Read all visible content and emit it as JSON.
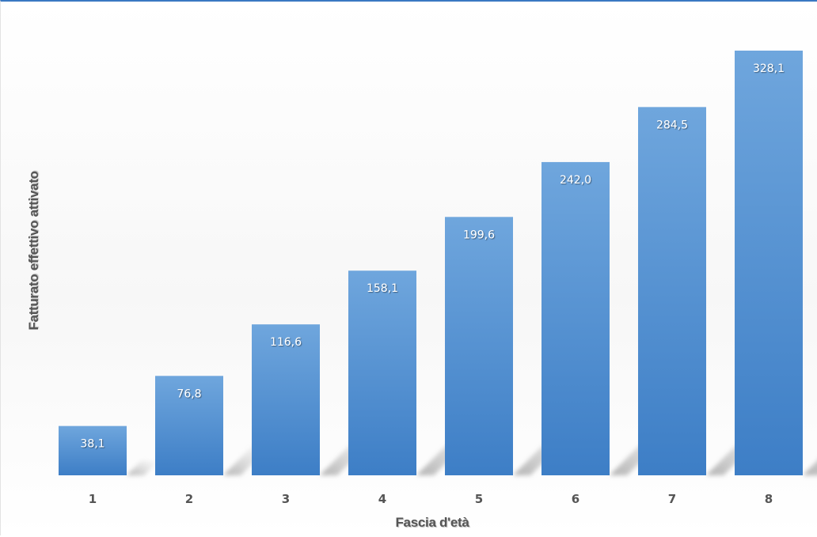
{
  "chart_data": {
    "type": "bar",
    "title": "",
    "xlabel": "Fascia d'età",
    "ylabel": "Fatturato effettivo attivato",
    "categories": [
      "1",
      "2",
      "3",
      "4",
      "5",
      "6",
      "7",
      "8"
    ],
    "values": [
      38.1,
      76.8,
      116.6,
      158.1,
      199.6,
      242.0,
      284.5,
      328.1
    ],
    "value_labels": [
      "38,1",
      "76,8",
      "116,6",
      "158,1",
      "199,6",
      "242,0",
      "284,5",
      "328,1"
    ],
    "ylim": [
      0,
      328.1
    ],
    "grid": false,
    "legend": "none",
    "bar_color": "#3d7ec6",
    "bar_color_light": "#6fa6dd"
  }
}
